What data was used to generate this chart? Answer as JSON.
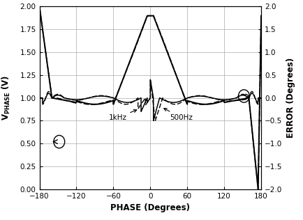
{
  "xlabel": "PHASE (Degrees)",
  "ylabel_left": "V_PHASE (V)",
  "ylabel_right": "ERROR (Degrees)",
  "xlim": [
    -180,
    180
  ],
  "ylim_left": [
    0,
    2.0
  ],
  "ylim_right": [
    -2.0,
    2.0
  ],
  "xticks": [
    -180,
    -120,
    -60,
    0,
    60,
    120,
    180
  ],
  "yticks_left": [
    0,
    0.25,
    0.5,
    0.75,
    1.0,
    1.25,
    1.5,
    1.75,
    2.0
  ],
  "yticks_right": [
    -2.0,
    -1.5,
    -1.0,
    -0.5,
    0,
    0.5,
    1.0,
    1.5,
    2.0
  ],
  "label_1khz": "1kHz",
  "label_500hz": "500Hz"
}
